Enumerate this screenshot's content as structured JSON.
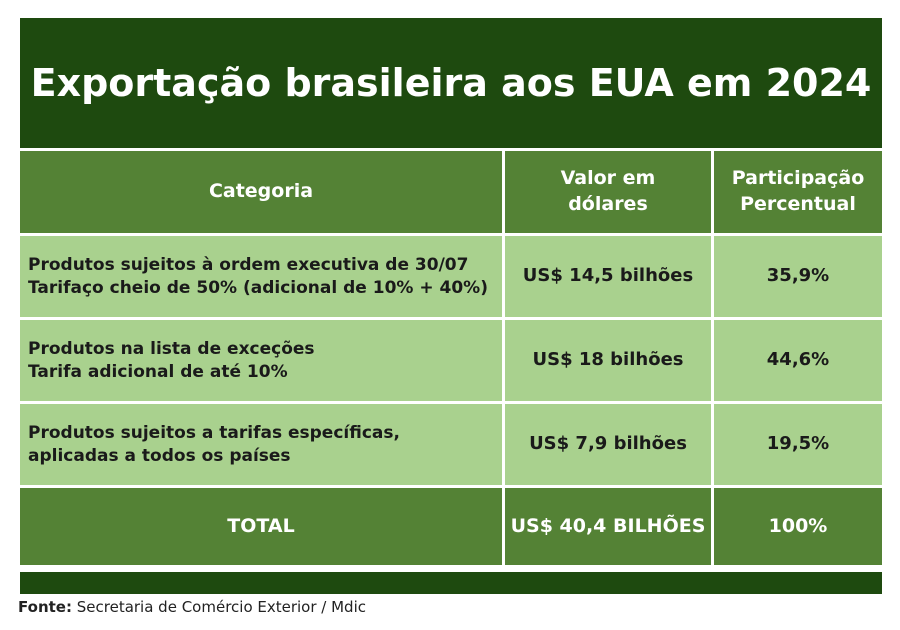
{
  "title": "Exportação brasileira aos EUA em 2024",
  "table": {
    "headers": {
      "category": "Categoria",
      "value_line1": "Valor em",
      "value_line2": "dólares",
      "share_line1": "Participação",
      "share_line2": "Percentual"
    },
    "rows": [
      {
        "category_line1": "Produtos sujeitos à ordem executiva de 30/07",
        "category_line2": "Tarifaço cheio de 50% (adicional de 10% + 40%)",
        "value": "US$ 14,5 bilhões",
        "share": "35,9%"
      },
      {
        "category_line1": "Produtos na lista de exceções",
        "category_line2": "Tarifa adicional de até 10%",
        "value": "US$ 18 bilhões",
        "share": "44,6%"
      },
      {
        "category_line1": "Produtos sujeitos a tarifas específicas,",
        "category_line2": "aplicadas a todos os países",
        "value": "US$ 7,9 bilhões",
        "share": "19,5%"
      }
    ],
    "total": {
      "label": "TOTAL",
      "value": "US$ 40,4 BILHÕES",
      "share": "100%"
    }
  },
  "footer": {
    "label": "Fonte:",
    "text": "Secretaria de Comércio Exterior / Mdic"
  },
  "colors": {
    "dark_green": "#1e4a0f",
    "header_green": "#548235",
    "light_green": "#a9d18e"
  }
}
